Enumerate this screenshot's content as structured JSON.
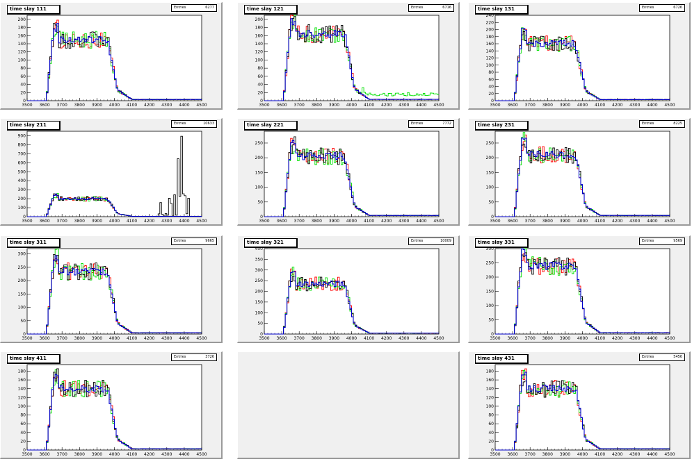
{
  "colors": {
    "ch1": "#ff0000",
    "ch2": "#00e000",
    "ch3": "#000000",
    "ch4": "#0000cc",
    "pad_bg": "#f0f0f0"
  },
  "stats_label": "Entries",
  "x_ticks": [
    3500,
    3600,
    3700,
    3800,
    3900,
    4000,
    4100,
    4200,
    4300,
    4400,
    4500
  ],
  "panels": [
    {
      "id": "p111",
      "title": "time slay 111",
      "entries": "6277",
      "row": 0,
      "col": 0,
      "ymax": 210,
      "yticks": [
        0,
        20,
        40,
        60,
        80,
        100,
        120,
        140,
        160,
        180,
        200
      ],
      "plateau": 150,
      "spike": false,
      "tailgreen": false
    },
    {
      "id": "p121",
      "title": "time slay 121",
      "entries": "6716",
      "row": 0,
      "col": 1,
      "ymax": 210,
      "yticks": [
        0,
        20,
        40,
        60,
        80,
        100,
        120,
        140,
        160,
        180,
        200
      ],
      "plateau": 165,
      "spike": false,
      "tailgreen": true
    },
    {
      "id": "p131",
      "title": "time slay 131",
      "entries": "6726",
      "row": 0,
      "col": 2,
      "ymax": 240,
      "yticks": [
        0,
        20,
        40,
        60,
        80,
        100,
        120,
        140,
        160,
        180,
        200,
        220,
        240
      ],
      "plateau": 160,
      "spike": false,
      "tailgreen": false
    },
    {
      "id": "p211",
      "title": "time slay 211",
      "entries": "10633",
      "row": 1,
      "col": 0,
      "ymax": 950,
      "yticks": [
        0,
        100,
        200,
        300,
        400,
        500,
        600,
        700,
        800,
        900
      ],
      "plateau": 200,
      "spike": true,
      "tailgreen": false
    },
    {
      "id": "p221",
      "title": "time slay 221",
      "entries": "7772",
      "row": 1,
      "col": 1,
      "ymax": 290,
      "yticks": [
        0,
        50,
        100,
        150,
        200,
        250
      ],
      "plateau": 205,
      "spike": false,
      "tailgreen": false
    },
    {
      "id": "p231",
      "title": "time slay 231",
      "entries": "8225",
      "row": 1,
      "col": 2,
      "ymax": 290,
      "yticks": [
        0,
        50,
        100,
        150,
        200,
        250
      ],
      "plateau": 210,
      "spike": false,
      "tailgreen": false
    },
    {
      "id": "p311",
      "title": "time slay 311",
      "entries": "9665",
      "row": 2,
      "col": 0,
      "ymax": 320,
      "yticks": [
        0,
        50,
        100,
        150,
        200,
        250,
        300
      ],
      "plateau": 235,
      "spike": false,
      "tailgreen": false
    },
    {
      "id": "p321",
      "title": "time slay 321",
      "entries": "10009",
      "row": 2,
      "col": 1,
      "ymax": 400,
      "yticks": [
        0,
        50,
        100,
        150,
        200,
        250,
        300,
        350,
        400
      ],
      "plateau": 235,
      "spike": false,
      "tailgreen": false
    },
    {
      "id": "p331",
      "title": "time slay 331",
      "entries": "9569",
      "row": 2,
      "col": 2,
      "ymax": 300,
      "yticks": [
        0,
        50,
        100,
        150,
        200,
        250,
        300
      ],
      "plateau": 240,
      "spike": false,
      "tailgreen": false
    },
    {
      "id": "p411",
      "title": "time slay 411",
      "entries": "3726",
      "row": 3,
      "col": 0,
      "ymax": 195,
      "yticks": [
        0,
        20,
        40,
        60,
        80,
        100,
        120,
        140,
        160,
        180
      ],
      "plateau": 140,
      "spike": false,
      "tailgreen": false
    },
    {
      "id": "p431",
      "title": "time slay 431",
      "entries": "5456",
      "row": 3,
      "col": 2,
      "ymax": 195,
      "yticks": [
        0,
        20,
        40,
        60,
        80,
        100,
        120,
        140,
        160,
        180
      ],
      "plateau": 140,
      "spike": false,
      "tailgreen": false
    }
  ],
  "chart_data": {
    "type": "bar",
    "title": "",
    "xlabel": "",
    "ylabel": "",
    "xlim": [
      3500,
      4500
    ],
    "series": [
      {
        "color": "#ff0000"
      },
      {
        "color": "#00e000"
      },
      {
        "color": "#000000"
      },
      {
        "color": "#0000cc"
      }
    ],
    "description": "",
    "panels": [
      {
        "title": "time slay 111",
        "entries": 6277,
        "ylim": [
          0,
          210
        ]
      },
      {
        "title": "time slay 121",
        "entries": 6716,
        "ylim": [
          0,
          210
        ]
      },
      {
        "title": "time slay 131",
        "entries": 6726,
        "ylim": [
          0,
          240
        ]
      },
      {
        "title": "time slay 211",
        "entries": 10633,
        "ylim": [
          0,
          950
        ],
        "note": "black series has spikes near 4300-4400 up to ~890"
      },
      {
        "title": "time slay 221",
        "entries": 7772,
        "ylim": [
          0,
          290
        ]
      },
      {
        "title": "time slay 231",
        "entries": 8225,
        "ylim": [
          0,
          290
        ]
      },
      {
        "title": "time slay 311",
        "entries": 9665,
        "ylim": [
          0,
          320
        ]
      },
      {
        "title": "time slay 321",
        "entries": 10009,
        "ylim": [
          0,
          400
        ]
      },
      {
        "title": "time slay 331",
        "entries": 9569,
        "ylim": [
          0,
          300
        ]
      },
      {
        "title": "time slay 411",
        "entries": 3726,
        "ylim": [
          0,
          195
        ]
      },
      {
        "title": "time slay 431",
        "entries": 5456,
        "ylim": [
          0,
          195
        ]
      }
    ]
  }
}
